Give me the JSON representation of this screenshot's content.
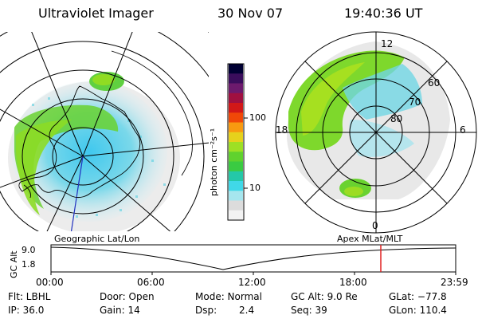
{
  "header": {
    "instrument": "Ultraviolet Imager",
    "date": "30 Nov 07",
    "time": "19:40:36 UT"
  },
  "colorbar": {
    "unit_label": "photon cm⁻²s⁻¹",
    "tick_labels": [
      "100",
      "10"
    ],
    "colors": [
      "#000033",
      "#3a0d5c",
      "#6d1a6d",
      "#a01040",
      "#d21818",
      "#f04808",
      "#f89a10",
      "#e6d21c",
      "#9ee024",
      "#60d22e",
      "#3acb42",
      "#24c8a8",
      "#40d8e8",
      "#a6e6ee",
      "#dcdcdc",
      "#f3f3f3"
    ]
  },
  "left_panel": {
    "caption": "Geographic Lat/Lon"
  },
  "right_panel": {
    "caption": "Apex MLat/MLT",
    "mlt_labels": [
      "12",
      "18",
      "6",
      "0"
    ],
    "lat_labels": [
      "60",
      "70",
      "80"
    ]
  },
  "timeline": {
    "axis_title": "GC Alt",
    "y_ticks": [
      "9.0",
      "1.8"
    ],
    "x_ticks": [
      "00:00",
      "06:00",
      "12:00",
      "18:00",
      "23:59"
    ],
    "marker_color": "#e02020"
  },
  "params": {
    "filter": "Flt: LBHL",
    "ip": "IP: 36.0",
    "door": "Door: Open",
    "gain": "Gain: 14",
    "mode": "Mode: Normal",
    "dsp_label": "Dsp:",
    "dsp_value": "2.4",
    "gc_alt": "GC Alt: 9.0 Re",
    "seq": "Seq: 39",
    "glat": "GLat: −77.8",
    "glon": "GLon: 110.4"
  }
}
